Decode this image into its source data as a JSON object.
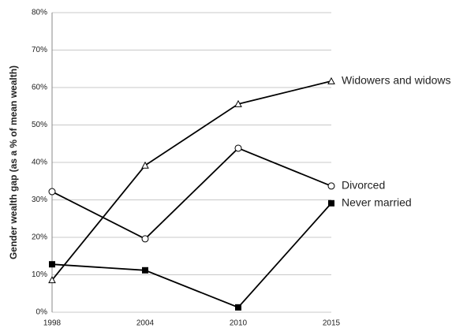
{
  "chart_data": {
    "type": "line",
    "y_label": "Gender wealth gap (as a % of mean wealth)",
    "categories": [
      "1998",
      "2004",
      "2010",
      "2015"
    ],
    "series": [
      {
        "name": "Widowers and widows",
        "color": "#000000",
        "marker": "triangle",
        "values": [
          8.6,
          39.2,
          55.6,
          61.7
        ]
      },
      {
        "name": "Divorced",
        "color": "#000000",
        "marker": "circle",
        "values": [
          32.2,
          19.6,
          43.8,
          33.7
        ]
      },
      {
        "name": "Never married",
        "color": "#000000",
        "marker": "square",
        "values": [
          12.8,
          11.2,
          1.3,
          29.1
        ]
      }
    ],
    "ylim": [
      0,
      80
    ],
    "yticks": [
      {
        "value": 0,
        "label": "0%"
      },
      {
        "value": 10,
        "label": "10%"
      },
      {
        "value": 20,
        "label": "20%"
      },
      {
        "value": 30,
        "label": "30%"
      },
      {
        "value": 40,
        "label": "40%"
      },
      {
        "value": 50,
        "label": "50%"
      },
      {
        "value": 60,
        "label": "60%"
      },
      {
        "value": 70,
        "label": "70%"
      },
      {
        "value": 80,
        "label": "80%"
      }
    ],
    "grid": true
  }
}
